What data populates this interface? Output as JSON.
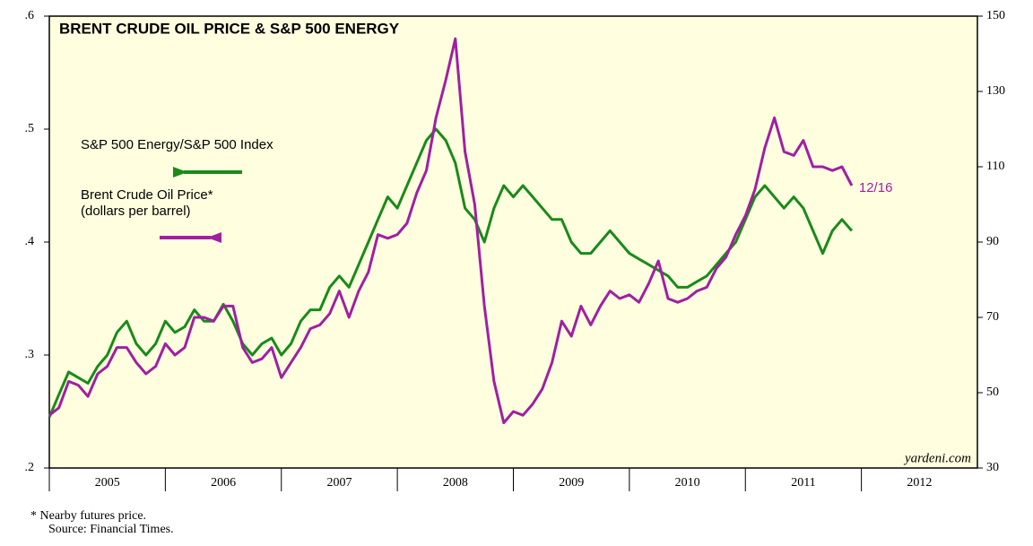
{
  "chart_data": {
    "type": "line",
    "title": "BRENT CRUDE OIL PRICE & S&P 500 ENERGY",
    "annotation": "12/16",
    "watermark": "yardeni.com",
    "footnotes": [
      "*  Nearby futures price.",
      "Source: Financial Times."
    ],
    "xlim": [
      2005,
      2013
    ],
    "xticks": [
      {
        "value": 2005.5,
        "label": "2005"
      },
      {
        "value": 2006.5,
        "label": "2006"
      },
      {
        "value": 2007.5,
        "label": "2007"
      },
      {
        "value": 2008.5,
        "label": "2008"
      },
      {
        "value": 2009.5,
        "label": "2009"
      },
      {
        "value": 2010.5,
        "label": "2010"
      },
      {
        "value": 2011.5,
        "label": "2011"
      },
      {
        "value": 2012.5,
        "label": "2012"
      }
    ],
    "ylim": [
      0.2,
      0.6
    ],
    "yticks": [
      {
        "value": 0.2,
        "label": ".2"
      },
      {
        "value": 0.3,
        "label": ".3"
      },
      {
        "value": 0.4,
        "label": ".4"
      },
      {
        "value": 0.5,
        "label": ".5"
      },
      {
        "value": 0.6,
        "label": ".6"
      }
    ],
    "y2lim": [
      30,
      150
    ],
    "y2ticks": [
      30,
      50,
      70,
      90,
      110,
      130,
      150
    ],
    "x": [
      2005.0,
      2005.083,
      2005.167,
      2005.25,
      2005.333,
      2005.417,
      2005.5,
      2005.583,
      2005.667,
      2005.75,
      2005.833,
      2005.917,
      2006.0,
      2006.083,
      2006.167,
      2006.25,
      2006.333,
      2006.417,
      2006.5,
      2006.583,
      2006.667,
      2006.75,
      2006.833,
      2006.917,
      2007.0,
      2007.083,
      2007.167,
      2007.25,
      2007.333,
      2007.417,
      2007.5,
      2007.583,
      2007.667,
      2007.75,
      2007.833,
      2007.917,
      2008.0,
      2008.083,
      2008.167,
      2008.25,
      2008.333,
      2008.417,
      2008.5,
      2008.583,
      2008.667,
      2008.75,
      2008.833,
      2008.917,
      2009.0,
      2009.083,
      2009.167,
      2009.25,
      2009.333,
      2009.417,
      2009.5,
      2009.583,
      2009.667,
      2009.75,
      2009.833,
      2009.917,
      2010.0,
      2010.083,
      2010.167,
      2010.25,
      2010.333,
      2010.417,
      2010.5,
      2010.583,
      2010.667,
      2010.75,
      2010.833,
      2010.917,
      2011.0,
      2011.083,
      2011.167,
      2011.25,
      2011.333,
      2011.417,
      2011.5,
      2011.583,
      2011.667,
      2011.75,
      2011.833,
      2011.917
    ],
    "series": [
      {
        "name": "S&P 500 Energy/S&P 500 Index",
        "color": "#1a8a1a",
        "axis": "y",
        "values": [
          0.245,
          0.265,
          0.285,
          0.28,
          0.275,
          0.29,
          0.3,
          0.32,
          0.33,
          0.31,
          0.3,
          0.31,
          0.33,
          0.32,
          0.325,
          0.34,
          0.33,
          0.33,
          0.345,
          0.33,
          0.31,
          0.3,
          0.31,
          0.315,
          0.3,
          0.31,
          0.33,
          0.34,
          0.34,
          0.36,
          0.37,
          0.36,
          0.38,
          0.4,
          0.42,
          0.44,
          0.43,
          0.45,
          0.47,
          0.49,
          0.5,
          0.49,
          0.47,
          0.43,
          0.42,
          0.4,
          0.43,
          0.45,
          0.44,
          0.45,
          0.44,
          0.43,
          0.42,
          0.42,
          0.4,
          0.39,
          0.39,
          0.4,
          0.41,
          0.4,
          0.39,
          0.385,
          0.38,
          0.375,
          0.37,
          0.36,
          0.36,
          0.365,
          0.37,
          0.38,
          0.39,
          0.4,
          0.42,
          0.44,
          0.45,
          0.44,
          0.43,
          0.44,
          0.43,
          0.41,
          0.39,
          0.41,
          0.42,
          0.41
        ]
      },
      {
        "name": "Brent Crude Oil Price*",
        "unit": "(dollars per barrel)",
        "color": "#a020a0",
        "axis": "y2",
        "values": [
          44,
          46,
          53,
          52,
          49,
          55,
          57,
          62,
          62,
          58,
          55,
          57,
          63,
          60,
          62,
          70,
          70,
          69,
          73,
          73,
          62,
          58,
          59,
          62,
          54,
          58,
          62,
          67,
          68,
          71,
          77,
          70,
          77,
          82,
          92,
          91,
          92,
          95,
          103,
          109,
          123,
          133,
          144,
          114,
          100,
          73,
          53,
          42,
          45,
          44,
          47,
          51,
          58,
          69,
          65,
          73,
          68,
          73,
          77,
          75,
          76,
          74,
          79,
          85,
          75,
          74,
          75,
          77,
          78,
          83,
          86,
          92,
          97,
          104,
          115,
          123,
          114,
          113,
          117,
          110,
          110,
          109,
          110,
          105
        ]
      }
    ]
  }
}
